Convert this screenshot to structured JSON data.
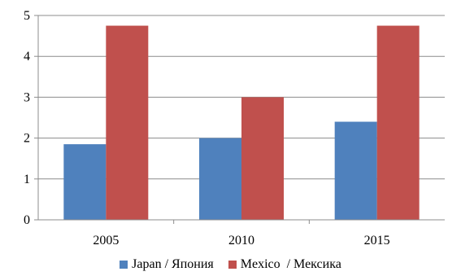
{
  "chart_data": {
    "type": "bar",
    "categories": [
      "2005",
      "2010",
      "2015"
    ],
    "series": [
      {
        "name": "Japan / Япония",
        "values": [
          1.85,
          2.0,
          2.4
        ],
        "color": "#4F81BD"
      },
      {
        "name": "Mexico  / Мексика",
        "values": [
          4.75,
          3.0,
          4.75
        ],
        "color": "#C0504D"
      }
    ],
    "ylim": [
      0,
      5
    ],
    "yticks": [
      "0",
      "1",
      "2",
      "3",
      "4",
      "5"
    ],
    "grid": true,
    "legend": "bottom"
  }
}
